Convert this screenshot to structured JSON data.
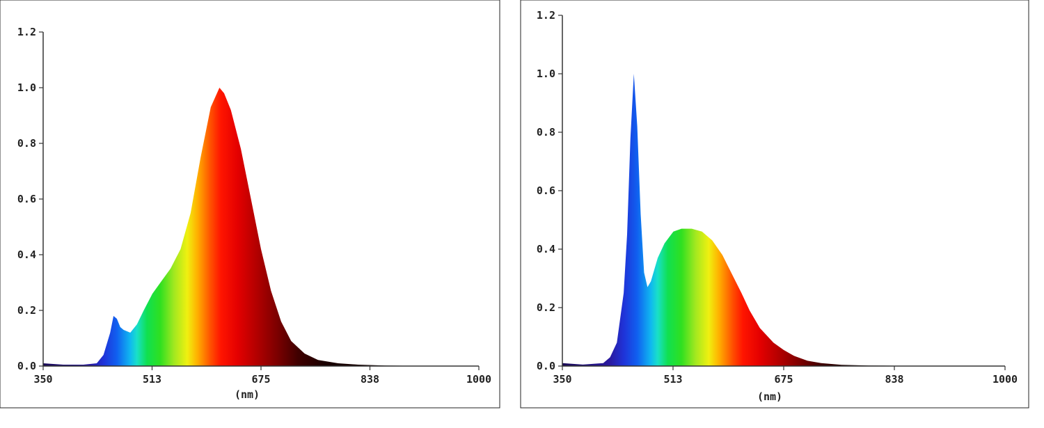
{
  "chart_data": [
    {
      "type": "area",
      "title": "",
      "xlabel": "(nm)",
      "ylabel": "",
      "xlim": [
        350,
        1000
      ],
      "ylim": [
        0,
        1.2
      ],
      "xticks": [
        "350",
        "513",
        "675",
        "838",
        "1000"
      ],
      "yticks": [
        "0.0",
        "0.2",
        "0.4",
        "0.6",
        "0.8",
        "1.0",
        "1.2"
      ],
      "fill": "visible-spectrum gradient",
      "grid": false,
      "series": [
        {
          "x": [
            350,
            380,
            410,
            430,
            440,
            450,
            455,
            460,
            465,
            470,
            480,
            490,
            500,
            513,
            525,
            540,
            555,
            570,
            585,
            600,
            613,
            620,
            630,
            645,
            660,
            675,
            690,
            705,
            720,
            740,
            760,
            790,
            820,
            860,
            900,
            950,
            1000
          ],
          "values": [
            0.01,
            0.005,
            0.005,
            0.01,
            0.04,
            0.12,
            0.18,
            0.17,
            0.14,
            0.13,
            0.12,
            0.15,
            0.2,
            0.26,
            0.3,
            0.35,
            0.42,
            0.55,
            0.75,
            0.93,
            1.0,
            0.98,
            0.92,
            0.78,
            0.6,
            0.42,
            0.27,
            0.16,
            0.09,
            0.045,
            0.022,
            0.01,
            0.005,
            0.002,
            0.001,
            0,
            0
          ]
        }
      ]
    },
    {
      "type": "area",
      "title": "",
      "xlabel": "(nm)",
      "ylabel": "",
      "xlim": [
        350,
        1000
      ],
      "ylim": [
        0,
        1.2
      ],
      "xticks": [
        "350",
        "513",
        "675",
        "838",
        "1000"
      ],
      "yticks": [
        "0.0",
        "0.2",
        "0.4",
        "0.6",
        "0.8",
        "1.0",
        "1.2"
      ],
      "fill": "visible-spectrum gradient",
      "grid": false,
      "series": [
        {
          "x": [
            350,
            380,
            410,
            420,
            430,
            440,
            445,
            450,
            455,
            460,
            465,
            470,
            475,
            480,
            485,
            490,
            500,
            513,
            525,
            540,
            555,
            570,
            585,
            600,
            613,
            625,
            640,
            660,
            675,
            690,
            710,
            730,
            760,
            800,
            850,
            900,
            1000
          ],
          "values": [
            0.01,
            0.005,
            0.01,
            0.03,
            0.08,
            0.25,
            0.45,
            0.78,
            1.0,
            0.82,
            0.52,
            0.32,
            0.27,
            0.29,
            0.33,
            0.37,
            0.42,
            0.46,
            0.47,
            0.47,
            0.46,
            0.43,
            0.38,
            0.31,
            0.25,
            0.19,
            0.13,
            0.08,
            0.055,
            0.035,
            0.018,
            0.01,
            0.004,
            0.002,
            0.001,
            0,
            0
          ]
        }
      ]
    }
  ]
}
